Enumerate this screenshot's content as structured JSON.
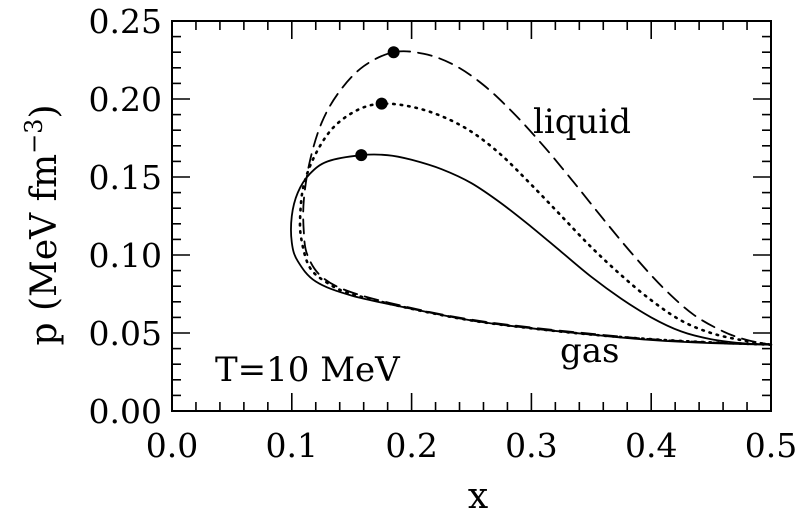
{
  "chart_data": {
    "type": "line",
    "xlabel": "x",
    "ylabel": "p (MeV fm",
    "ylabel_sup": "−3",
    "ylabel_close": ")",
    "xlim": [
      0.0,
      0.5
    ],
    "ylim": [
      0.0,
      0.25
    ],
    "x_ticks": [
      "0.0",
      "0.1",
      "0.2",
      "0.3",
      "0.4",
      "0.5"
    ],
    "y_ticks": [
      "0.00",
      "0.05",
      "0.10",
      "0.15",
      "0.20",
      "0.25"
    ],
    "x_tick_values": [
      0.0,
      0.1,
      0.2,
      0.3,
      0.4,
      0.5
    ],
    "y_tick_values": [
      0.0,
      0.05,
      0.1,
      0.15,
      0.2,
      0.25
    ],
    "grid": false,
    "annotations": {
      "temperature": "T=10 MeV",
      "liquid": "liquid",
      "gas": "gas"
    },
    "series": [
      {
        "style": "solid",
        "points": [
          [
            0.5,
            0.0425
          ],
          [
            0.45,
            0.0435
          ],
          [
            0.4,
            0.0455
          ],
          [
            0.35,
            0.049
          ],
          [
            0.3,
            0.053
          ],
          [
            0.25,
            0.058
          ],
          [
            0.2,
            0.0655
          ],
          [
            0.15,
            0.074
          ],
          [
            0.12,
            0.083
          ],
          [
            0.105,
            0.096
          ],
          [
            0.1,
            0.108
          ],
          [
            0.1,
            0.125
          ],
          [
            0.105,
            0.14
          ],
          [
            0.115,
            0.152
          ],
          [
            0.13,
            0.16
          ],
          [
            0.158,
            0.164
          ],
          [
            0.18,
            0.164
          ],
          [
            0.2,
            0.161
          ],
          [
            0.225,
            0.155
          ],
          [
            0.25,
            0.146
          ],
          [
            0.275,
            0.133
          ],
          [
            0.3,
            0.118
          ],
          [
            0.325,
            0.102
          ],
          [
            0.35,
            0.086
          ],
          [
            0.375,
            0.072
          ],
          [
            0.4,
            0.06
          ],
          [
            0.425,
            0.051
          ],
          [
            0.45,
            0.046
          ],
          [
            0.475,
            0.0435
          ],
          [
            0.5,
            0.0425
          ]
        ],
        "critical_point": [
          0.158,
          0.164
        ]
      },
      {
        "style": "dotted",
        "points": [
          [
            0.5,
            0.0425
          ],
          [
            0.45,
            0.044
          ],
          [
            0.4,
            0.046
          ],
          [
            0.35,
            0.049
          ],
          [
            0.3,
            0.053
          ],
          [
            0.25,
            0.058
          ],
          [
            0.2,
            0.0655
          ],
          [
            0.15,
            0.075
          ],
          [
            0.13,
            0.082
          ],
          [
            0.115,
            0.092
          ],
          [
            0.108,
            0.11
          ],
          [
            0.107,
            0.125
          ],
          [
            0.11,
            0.145
          ],
          [
            0.12,
            0.165
          ],
          [
            0.135,
            0.182
          ],
          [
            0.155,
            0.193
          ],
          [
            0.175,
            0.197
          ],
          [
            0.2,
            0.195
          ],
          [
            0.225,
            0.189
          ],
          [
            0.25,
            0.179
          ],
          [
            0.275,
            0.164
          ],
          [
            0.3,
            0.145
          ],
          [
            0.325,
            0.125
          ],
          [
            0.35,
            0.105
          ],
          [
            0.375,
            0.087
          ],
          [
            0.4,
            0.071
          ],
          [
            0.425,
            0.058
          ],
          [
            0.45,
            0.05
          ],
          [
            0.475,
            0.0455
          ],
          [
            0.5,
            0.0425
          ]
        ],
        "critical_point": [
          0.175,
          0.197
        ]
      },
      {
        "style": "dashed",
        "points": [
          [
            0.5,
            0.0425
          ],
          [
            0.45,
            0.044
          ],
          [
            0.4,
            0.046
          ],
          [
            0.35,
            0.0495
          ],
          [
            0.3,
            0.0535
          ],
          [
            0.25,
            0.0585
          ],
          [
            0.2,
            0.066
          ],
          [
            0.15,
            0.076
          ],
          [
            0.125,
            0.086
          ],
          [
            0.113,
            0.1
          ],
          [
            0.11,
            0.115
          ],
          [
            0.11,
            0.135
          ],
          [
            0.115,
            0.16
          ],
          [
            0.125,
            0.185
          ],
          [
            0.14,
            0.205
          ],
          [
            0.16,
            0.221
          ],
          [
            0.185,
            0.23
          ],
          [
            0.21,
            0.229
          ],
          [
            0.235,
            0.222
          ],
          [
            0.26,
            0.209
          ],
          [
            0.285,
            0.191
          ],
          [
            0.31,
            0.17
          ],
          [
            0.335,
            0.147
          ],
          [
            0.36,
            0.123
          ],
          [
            0.385,
            0.1
          ],
          [
            0.41,
            0.079
          ],
          [
            0.435,
            0.062
          ],
          [
            0.46,
            0.051
          ],
          [
            0.48,
            0.0455
          ],
          [
            0.5,
            0.0425
          ]
        ],
        "critical_point": [
          0.185,
          0.23
        ]
      }
    ]
  }
}
